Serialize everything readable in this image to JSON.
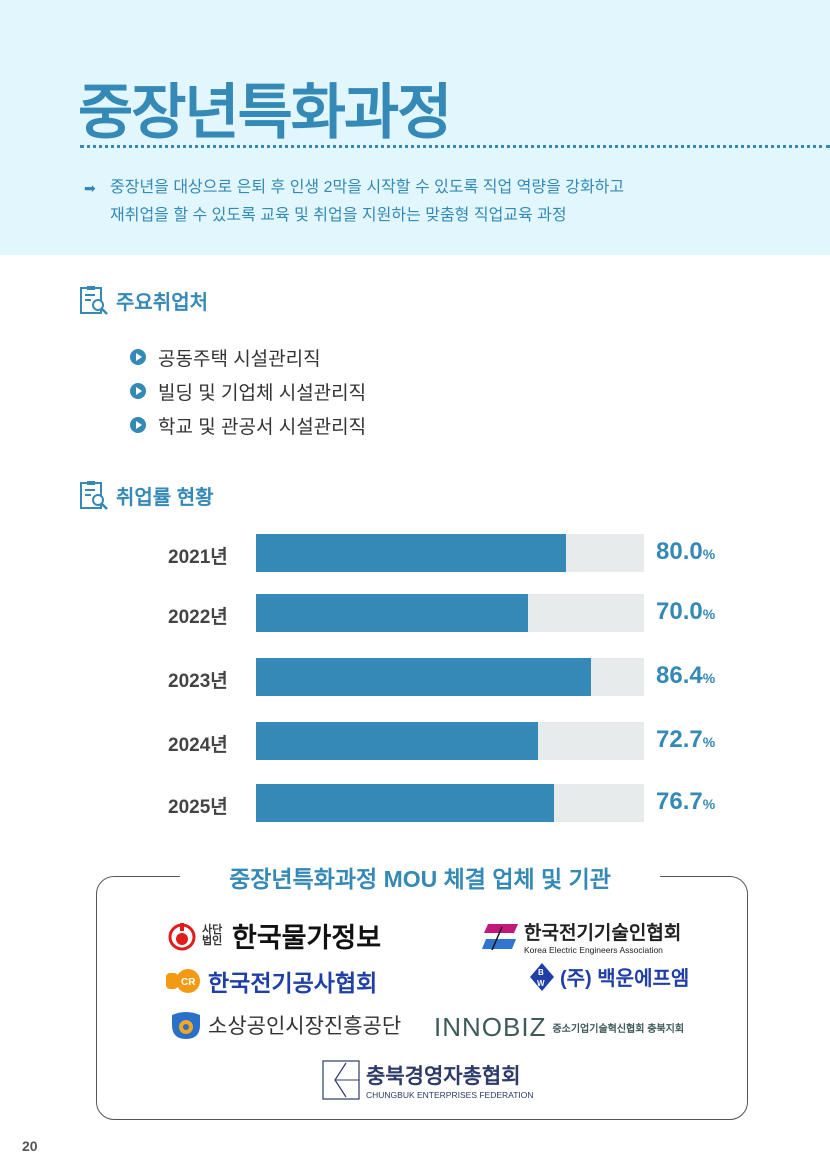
{
  "header": {
    "title": "중장년특화과정",
    "description": [
      "중장년을 대상으로 은퇴 후  인생 2막을 시작할 수 있도록 직업 역량을 강화하고",
      "재취업을 할 수 있도록 교육 및 취업을 지원하는 맞춤형 직업교육 과정"
    ],
    "arrow": "➡"
  },
  "jobs": {
    "title": "주요취업처",
    "items": [
      "공동주택 시설관리직",
      "빌딩 및 기업체 시설관리직",
      "학교 및 관공서 시설관리직"
    ]
  },
  "employment": {
    "title": "취업률 현황"
  },
  "chart_data": {
    "type": "bar",
    "orientation": "horizontal",
    "title": "취업률 현황",
    "categories": [
      "2021년",
      "2022년",
      "2023년",
      "2024년",
      "2025년"
    ],
    "values": [
      80.0,
      70.0,
      86.4,
      72.7,
      76.7
    ],
    "labels": [
      "80.0",
      "70.0",
      "86.4",
      "72.7",
      "76.7"
    ],
    "unit": "%",
    "xlim": [
      0,
      100
    ]
  },
  "mou": {
    "title": "중장년특화과정 MOU 체결 업체 및 기관",
    "logos": [
      {
        "name": "한국물가정보",
        "prefix": "사단법인"
      },
      {
        "name": "한국전기기술인협회",
        "sub": "Korea Electric Engineers Association"
      },
      {
        "name": "한국전기공사협회"
      },
      {
        "name": "(주) 백운에프엠"
      },
      {
        "name": "소상공인시장진흥공단"
      },
      {
        "name": "INNOBIZ",
        "sub": "중소기업기술혁신협회 충북지회"
      },
      {
        "name": "충북경영자총협회",
        "sub": "CHUNGBUK ENTERPRISES FEDERATION"
      }
    ]
  },
  "page_number": "20",
  "colors": {
    "accent": "#3589b6",
    "header_bg": "#e1f7fd",
    "track": "#e7ebec"
  }
}
